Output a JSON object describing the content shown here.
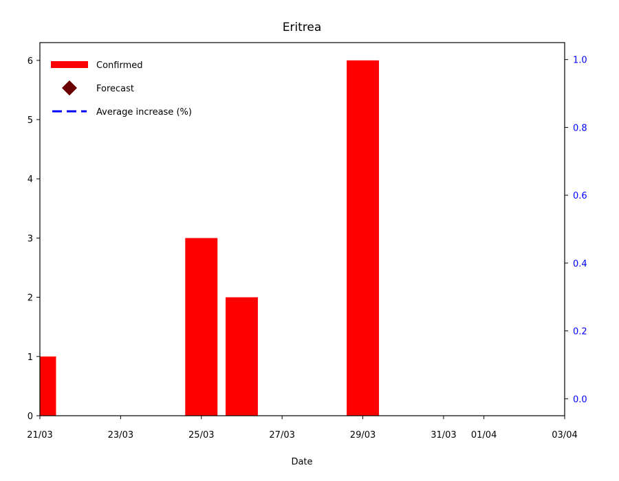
{
  "chart_data": {
    "type": "bar",
    "title": "Eritrea",
    "xlabel": "Date",
    "ylabel": "",
    "ylabel_right": "",
    "x_tick_labels": [
      "21/03",
      "23/03",
      "25/03",
      "27/03",
      "29/03",
      "31/03",
      "01/04",
      "03/04"
    ],
    "x_tick_days": [
      0,
      2,
      4,
      6,
      8,
      10,
      11,
      13
    ],
    "xlim_days": [
      0,
      13
    ],
    "categories": [
      "21/03",
      "25/03",
      "26/03",
      "29/03"
    ],
    "category_days": [
      0,
      4,
      5,
      8
    ],
    "series": [
      {
        "name": "Confirmed",
        "values": [
          1,
          3,
          2,
          6
        ],
        "color": "#ff0000"
      }
    ],
    "ylim": [
      0,
      6.3
    ],
    "y_ticks": [
      0,
      1,
      2,
      3,
      4,
      5,
      6
    ],
    "ylim_right": [
      -0.05,
      1.05
    ],
    "y_ticks_right": [
      0.0,
      0.2,
      0.4,
      0.6,
      0.8,
      1.0
    ],
    "right_axis_color": "#0000ff",
    "legend": {
      "placement": "top-left",
      "entries": [
        {
          "label": "Confirmed",
          "marker": "bar",
          "color": "#ff0000"
        },
        {
          "label": "Forecast",
          "marker": "diamond",
          "color": "#6b0000"
        },
        {
          "label": "Average increase (%)",
          "marker": "dashed-line",
          "color": "#0000ff"
        }
      ]
    },
    "grid": false
  }
}
